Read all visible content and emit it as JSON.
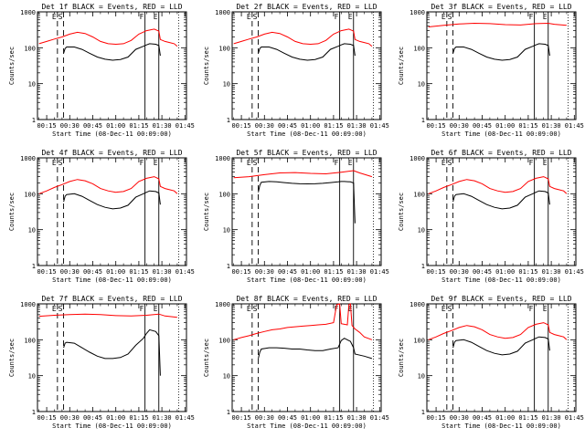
{
  "chart_data": {
    "type": "line",
    "panel_layout": "3x3 grid",
    "x_axis": {
      "label": "Start Time (08-Dec-11 00:09:00)",
      "range_minutes": [
        9,
        106
      ],
      "ticks": [
        {
          "label": "00:15",
          "minutes": 15
        },
        {
          "label": "00:30",
          "minutes": 30
        },
        {
          "label": "00:45",
          "minutes": 45
        },
        {
          "label": "01:00",
          "minutes": 60
        },
        {
          "label": "01:15",
          "minutes": 75
        },
        {
          "label": "01:30",
          "minutes": 90
        },
        {
          "label": "01:45",
          "minutes": 105
        }
      ]
    },
    "y_axis": {
      "label": "Counts/sec",
      "scale": "log",
      "range": [
        1,
        1000
      ],
      "ticks": [
        {
          "label": "1",
          "value": 1
        },
        {
          "label": "10",
          "value": 10
        },
        {
          "label": "100",
          "value": 100
        },
        {
          "label": "1000",
          "value": 1000
        }
      ]
    },
    "series_colors": {
      "events": "#000000",
      "lld": "#ff0000"
    },
    "markers": [
      {
        "label": "E",
        "minutes": 22,
        "style": "dashed"
      },
      {
        "label": "S",
        "minutes": 26,
        "style": "dashed"
      },
      {
        "label": "F",
        "minutes": 79,
        "style": "solid"
      },
      {
        "label": "E",
        "minutes": 88,
        "style": "solid"
      }
    ],
    "panels": [
      {
        "title": "Det 1f BLACK = Events, RED = LLD",
        "events": {
          "x": [
            26,
            27,
            28,
            33,
            38,
            43,
            48,
            53,
            58,
            63,
            68,
            73,
            78,
            80,
            82,
            86,
            88,
            89
          ],
          "y": [
            70,
            95,
            105,
            105,
            90,
            70,
            55,
            48,
            45,
            47,
            55,
            90,
            110,
            120,
            130,
            125,
            115,
            60
          ]
        },
        "lld": {
          "x": [
            10,
            15,
            20,
            25,
            30,
            35,
            40,
            45,
            50,
            55,
            60,
            65,
            70,
            75,
            80,
            85,
            88,
            89,
            92,
            95,
            98,
            100
          ],
          "y": [
            130,
            150,
            175,
            200,
            240,
            270,
            250,
            200,
            150,
            130,
            125,
            130,
            160,
            240,
            300,
            330,
            290,
            170,
            150,
            140,
            130,
            110
          ]
        }
      },
      {
        "title": "Det 2f BLACK = Events, RED = LLD",
        "events": {
          "x": [
            26,
            27,
            28,
            33,
            38,
            43,
            48,
            53,
            58,
            63,
            68,
            73,
            78,
            80,
            82,
            86,
            88,
            89
          ],
          "y": [
            70,
            95,
            105,
            105,
            90,
            70,
            55,
            48,
            45,
            47,
            55,
            90,
            110,
            120,
            130,
            125,
            115,
            60
          ]
        },
        "lld": {
          "x": [
            10,
            15,
            20,
            25,
            30,
            35,
            40,
            45,
            50,
            55,
            60,
            65,
            70,
            75,
            80,
            85,
            88,
            89,
            92,
            95,
            98,
            100
          ],
          "y": [
            130,
            150,
            175,
            200,
            240,
            270,
            250,
            200,
            150,
            130,
            125,
            130,
            160,
            240,
            300,
            330,
            290,
            170,
            150,
            140,
            130,
            110
          ]
        }
      },
      {
        "title": "Det 3f BLACK = Events, RED = LLD",
        "events": {
          "x": [
            26,
            27,
            28,
            33,
            38,
            43,
            48,
            53,
            58,
            63,
            68,
            73,
            78,
            80,
            82,
            86,
            88,
            89
          ],
          "y": [
            70,
            95,
            105,
            105,
            90,
            70,
            55,
            48,
            45,
            47,
            55,
            90,
            110,
            120,
            130,
            125,
            115,
            60
          ]
        },
        "lld": {
          "x": [
            10,
            20,
            30,
            40,
            50,
            60,
            70,
            80,
            88,
            92,
            100
          ],
          "y": [
            380,
            420,
            460,
            480,
            470,
            440,
            430,
            470,
            480,
            450,
            420
          ]
        }
      },
      {
        "title": "Det 4f BLACK = Events, RED = LLD",
        "events": {
          "x": [
            26,
            27,
            28,
            33,
            38,
            43,
            48,
            53,
            58,
            63,
            68,
            73,
            78,
            80,
            82,
            86,
            88,
            89
          ],
          "y": [
            60,
            85,
            95,
            100,
            85,
            65,
            50,
            42,
            38,
            40,
            48,
            80,
            100,
            110,
            120,
            115,
            105,
            50
          ]
        },
        "lld": {
          "x": [
            10,
            15,
            20,
            25,
            30,
            35,
            40,
            45,
            50,
            55,
            60,
            65,
            70,
            75,
            80,
            85,
            88,
            89,
            92,
            95,
            98,
            100
          ],
          "y": [
            100,
            120,
            150,
            180,
            220,
            250,
            230,
            190,
            140,
            120,
            110,
            115,
            140,
            220,
            270,
            300,
            260,
            160,
            140,
            130,
            120,
            100
          ]
        }
      },
      {
        "title": "Det 5f BLACK = Events, RED = LLD",
        "events": {
          "x": [
            26,
            27,
            28,
            33,
            38,
            43,
            48,
            53,
            58,
            63,
            68,
            73,
            78,
            80,
            82,
            86,
            88,
            89
          ],
          "y": [
            110,
            170,
            210,
            220,
            215,
            205,
            195,
            190,
            188,
            190,
            195,
            205,
            215,
            220,
            220,
            215,
            200,
            15
          ]
        },
        "lld": {
          "x": [
            10,
            20,
            30,
            40,
            50,
            60,
            70,
            80,
            88,
            92,
            100
          ],
          "y": [
            280,
            300,
            340,
            380,
            390,
            370,
            360,
            400,
            440,
            380,
            300
          ]
        }
      },
      {
        "title": "Det 6f BLACK = Events, RED = LLD",
        "events": {
          "x": [
            26,
            27,
            28,
            33,
            38,
            43,
            48,
            53,
            58,
            63,
            68,
            73,
            78,
            80,
            82,
            86,
            88,
            89
          ],
          "y": [
            60,
            85,
            95,
            100,
            85,
            65,
            50,
            42,
            38,
            40,
            48,
            80,
            100,
            110,
            120,
            115,
            105,
            50
          ]
        },
        "lld": {
          "x": [
            10,
            15,
            20,
            25,
            30,
            35,
            40,
            45,
            50,
            55,
            60,
            65,
            70,
            75,
            80,
            85,
            88,
            89,
            92,
            95,
            98,
            100
          ],
          "y": [
            100,
            120,
            150,
            180,
            220,
            250,
            230,
            190,
            140,
            120,
            110,
            115,
            140,
            220,
            270,
            300,
            260,
            160,
            140,
            130,
            120,
            100
          ]
        }
      },
      {
        "title": "Det 7f BLACK = Events, RED = LLD",
        "events": {
          "x": [
            26,
            27,
            28,
            33,
            38,
            43,
            48,
            53,
            58,
            63,
            68,
            73,
            78,
            80,
            82,
            86,
            88,
            89
          ],
          "y": [
            60,
            80,
            85,
            80,
            60,
            45,
            35,
            30,
            30,
            32,
            40,
            70,
            110,
            150,
            190,
            170,
            130,
            10
          ]
        },
        "lld": {
          "x": [
            10,
            20,
            30,
            40,
            50,
            60,
            70,
            80,
            88,
            92,
            100
          ],
          "y": [
            450,
            480,
            500,
            520,
            500,
            470,
            460,
            480,
            520,
            460,
            420
          ]
        }
      },
      {
        "title": "Det 8f BLACK = Events, RED = LLD",
        "events": {
          "x": [
            26,
            27,
            28,
            33,
            38,
            43,
            48,
            53,
            58,
            63,
            68,
            73,
            78,
            80,
            82,
            86,
            88,
            89,
            95,
            100
          ],
          "y": [
            30,
            45,
            55,
            60,
            60,
            58,
            55,
            55,
            52,
            50,
            50,
            55,
            60,
            95,
            110,
            90,
            60,
            40,
            35,
            30
          ]
        },
        "lld": {
          "x": [
            10,
            15,
            20,
            25,
            30,
            35,
            40,
            45,
            50,
            55,
            60,
            65,
            70,
            75,
            77,
            79,
            80,
            84,
            85,
            86,
            87,
            89,
            92,
            95,
            100
          ],
          "y": [
            100,
            115,
            130,
            150,
            170,
            190,
            200,
            220,
            230,
            240,
            250,
            260,
            270,
            300,
            950,
            1000,
            280,
            260,
            950,
            1000,
            250,
            200,
            160,
            120,
            100
          ]
        }
      },
      {
        "title": "Det 9f BLACK = Events, RED = LLD",
        "events": {
          "x": [
            26,
            27,
            28,
            33,
            38,
            43,
            48,
            53,
            58,
            63,
            68,
            73,
            78,
            80,
            82,
            86,
            88,
            89
          ],
          "y": [
            60,
            85,
            95,
            100,
            85,
            65,
            50,
            42,
            38,
            40,
            48,
            80,
            100,
            110,
            120,
            115,
            105,
            50
          ]
        },
        "lld": {
          "x": [
            10,
            15,
            20,
            25,
            30,
            35,
            40,
            45,
            50,
            55,
            60,
            65,
            70,
            75,
            80,
            85,
            88,
            89,
            92,
            95,
            98,
            100
          ],
          "y": [
            100,
            120,
            150,
            180,
            220,
            250,
            230,
            190,
            140,
            120,
            110,
            115,
            140,
            220,
            270,
            300,
            260,
            160,
            140,
            130,
            120,
            100
          ]
        }
      }
    ]
  }
}
